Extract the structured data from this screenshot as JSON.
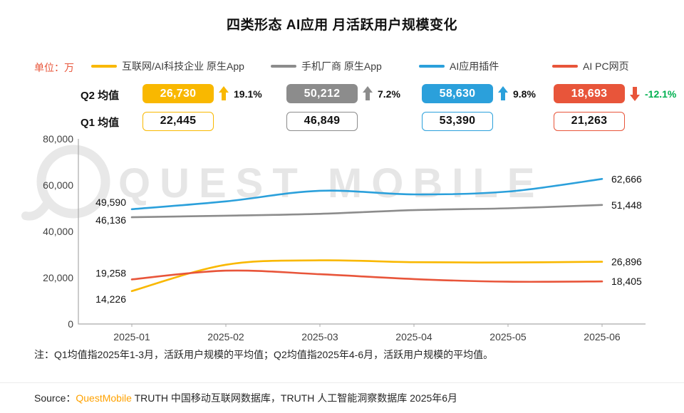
{
  "title": "四类形态 AI应用 月活跃用户规模变化",
  "unit_label": "单位：万",
  "summary": {
    "q2_label": "Q2 均值",
    "q1_label": "Q1 均值",
    "items": [
      {
        "q2": "26,730",
        "q1": "22,445",
        "growth": "19.1%",
        "dir": "up",
        "growth_color": "#111111"
      },
      {
        "q2": "50,212",
        "q1": "46,849",
        "growth": "7.2%",
        "dir": "up",
        "growth_color": "#111111"
      },
      {
        "q2": "58,630",
        "q1": "53,390",
        "growth": "9.8%",
        "dir": "up",
        "growth_color": "#111111"
      },
      {
        "q2": "18,693",
        "q1": "21,263",
        "growth": "-12.1%",
        "dir": "down",
        "growth_color": "#00B050"
      }
    ]
  },
  "chart_data": {
    "type": "line",
    "title": "四类形态 AI应用 月活跃用户规模变化",
    "unit": "万",
    "x": [
      "2025-01",
      "2025-02",
      "2025-03",
      "2025-04",
      "2025-05",
      "2025-06"
    ],
    "series": [
      {
        "name": "互联网/AI科技企业 原生App",
        "color": "#F9B800",
        "values": [
          14226,
          25609,
          27500,
          26700,
          26594,
          26896
        ],
        "first_label": "14,226",
        "last_label": "26,896",
        "q1_avg": 22445,
        "q2_avg": 26730
      },
      {
        "name": "手机厂商 原生App",
        "color": "#8C8C8C",
        "values": [
          46136,
          46800,
          47611,
          49200,
          49988,
          51448
        ],
        "first_label": "46,136",
        "last_label": "51,448",
        "q1_avg": 46849,
        "q2_avg": 50212
      },
      {
        "name": "AI应用插件",
        "color": "#2BA0DB",
        "values": [
          49590,
          53000,
          57580,
          56000,
          57224,
          62666
        ],
        "first_label": "49,590",
        "last_label": "62,666",
        "q1_avg": 53390,
        "q2_avg": 58630
      },
      {
        "name": "AI PC网页",
        "color": "#E8553A",
        "values": [
          19258,
          23031,
          21500,
          19400,
          18274,
          18405
        ],
        "first_label": "19,258",
        "last_label": "18,405",
        "q1_avg": 21263,
        "q2_avg": 18693
      }
    ],
    "ylim": [
      0,
      80000
    ],
    "ytick_labels": [
      "80,000",
      "60,000",
      "40,000",
      "20,000",
      "0"
    ],
    "grid": false,
    "legend_position": "top"
  },
  "watermark": "QUEST MOBILE",
  "note": "注：Q1均值指2025年1-3月，活跃用户规模的平均值；Q2均值指2025年4-6月，活跃用户规模的平均值。",
  "source": {
    "prefix": "Source：",
    "brand": "QuestMobile",
    "rest": " TRUTH 中国移动互联网数据库，TRUTH 人工智能洞察数据库 2025年6月"
  }
}
